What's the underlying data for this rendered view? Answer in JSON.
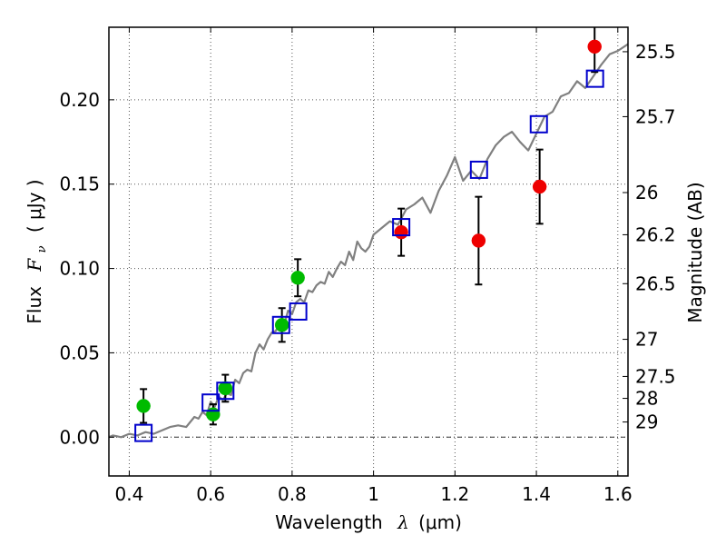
{
  "chart_data": {
    "type": "scatter",
    "title": "",
    "xlabel_text": "Wavelength",
    "xlabel_symbol": "λ",
    "xlabel_unit": "(μm)",
    "ylabel_text": "Flux",
    "ylabel_symbol": "F",
    "ylabel_subscript": "ν",
    "ylabel_unit": "( μJy )",
    "y2label": "Magnitude (AB)",
    "xlim": [
      0.35,
      1.625
    ],
    "ylim": [
      -0.023,
      0.243
    ],
    "grid": true,
    "x_ticks": [
      0.4,
      0.6,
      0.8,
      1.0,
      1.2,
      1.4,
      1.6
    ],
    "x_tick_labels": [
      "0.4",
      "0.6",
      "0.8",
      "1",
      "1.2",
      "1.4",
      "1.6"
    ],
    "y_ticks": [
      0.0,
      0.05,
      0.1,
      0.15,
      0.2
    ],
    "y_tick_labels": [
      "0.00",
      "0.05",
      "0.10",
      "0.15",
      "0.20"
    ],
    "right_ticks": [
      {
        "flux": 0.2285,
        "label": "25.5"
      },
      {
        "flux": 0.19,
        "label": "25.7"
      },
      {
        "flux": 0.145,
        "label": "26"
      },
      {
        "flux": 0.12,
        "label": "26.2"
      },
      {
        "flux": 0.091,
        "label": "26.5"
      },
      {
        "flux": 0.058,
        "label": "27"
      },
      {
        "flux": 0.036,
        "label": "27.5"
      },
      {
        "flux": 0.023,
        "label": "28"
      },
      {
        "flux": 0.009,
        "label": "29"
      }
    ],
    "zero_line": true,
    "colors": {
      "model_line": "#808080",
      "green_points": "#00bb00",
      "red_points": "#ee0000",
      "model_squares": "#0000cc",
      "grid": "#555555"
    },
    "model_spectrum": {
      "x": [
        0.35,
        0.36,
        0.38,
        0.4,
        0.42,
        0.44,
        0.46,
        0.48,
        0.5,
        0.52,
        0.54,
        0.56,
        0.57,
        0.58,
        0.59,
        0.6,
        0.61,
        0.62,
        0.63,
        0.64,
        0.65,
        0.66,
        0.67,
        0.68,
        0.69,
        0.7,
        0.71,
        0.72,
        0.73,
        0.74,
        0.75,
        0.76,
        0.77,
        0.78,
        0.79,
        0.8,
        0.81,
        0.82,
        0.83,
        0.84,
        0.85,
        0.86,
        0.87,
        0.88,
        0.89,
        0.9,
        0.91,
        0.92,
        0.93,
        0.94,
        0.95,
        0.96,
        0.97,
        0.98,
        0.99,
        1.0,
        1.02,
        1.04,
        1.06,
        1.08,
        1.1,
        1.12,
        1.14,
        1.16,
        1.18,
        1.2,
        1.22,
        1.24,
        1.26,
        1.28,
        1.3,
        1.32,
        1.34,
        1.36,
        1.38,
        1.4,
        1.42,
        1.44,
        1.46,
        1.48,
        1.5,
        1.52,
        1.54,
        1.56,
        1.58,
        1.6,
        1.625
      ],
      "y": [
        0.0,
        0.001,
        0.0,
        0.002,
        0.001,
        0.003,
        0.002,
        0.004,
        0.006,
        0.007,
        0.006,
        0.012,
        0.011,
        0.015,
        0.013,
        0.021,
        0.018,
        0.024,
        0.022,
        0.026,
        0.025,
        0.034,
        0.032,
        0.038,
        0.04,
        0.039,
        0.05,
        0.055,
        0.052,
        0.058,
        0.062,
        0.063,
        0.068,
        0.066,
        0.075,
        0.073,
        0.08,
        0.082,
        0.08,
        0.087,
        0.086,
        0.09,
        0.092,
        0.091,
        0.098,
        0.095,
        0.1,
        0.104,
        0.102,
        0.11,
        0.105,
        0.116,
        0.112,
        0.11,
        0.113,
        0.12,
        0.124,
        0.128,
        0.126,
        0.135,
        0.138,
        0.142,
        0.133,
        0.146,
        0.155,
        0.166,
        0.152,
        0.158,
        0.153,
        0.165,
        0.173,
        0.178,
        0.181,
        0.175,
        0.17,
        0.18,
        0.19,
        0.193,
        0.202,
        0.204,
        0.211,
        0.207,
        0.214,
        0.221,
        0.227,
        0.229,
        0.233
      ]
    },
    "series": [
      {
        "marker": "circle",
        "color": "green",
        "x": [
          0.435,
          0.606,
          0.636,
          0.775,
          0.814
        ],
        "y": [
          0.0185,
          0.0135,
          0.029,
          0.0665,
          0.0945
        ],
        "yerr": [
          0.01,
          0.006,
          0.008,
          0.01,
          0.011
        ]
      },
      {
        "marker": "circle",
        "color": "red",
        "x": [
          1.068,
          1.258,
          1.408,
          1.543
        ],
        "y": [
          0.1215,
          0.1165,
          0.1485,
          0.2315
        ],
        "yerr": [
          0.014,
          0.026,
          0.022,
          0.015
        ]
      },
      {
        "marker": "open-square",
        "color": "blue",
        "x": [
          0.435,
          0.6,
          0.636,
          0.773,
          0.815,
          1.068,
          1.259,
          1.406,
          1.544
        ],
        "y": [
          0.0025,
          0.0205,
          0.0275,
          0.0665,
          0.0745,
          0.1245,
          0.1585,
          0.1855,
          0.2125
        ]
      }
    ]
  }
}
